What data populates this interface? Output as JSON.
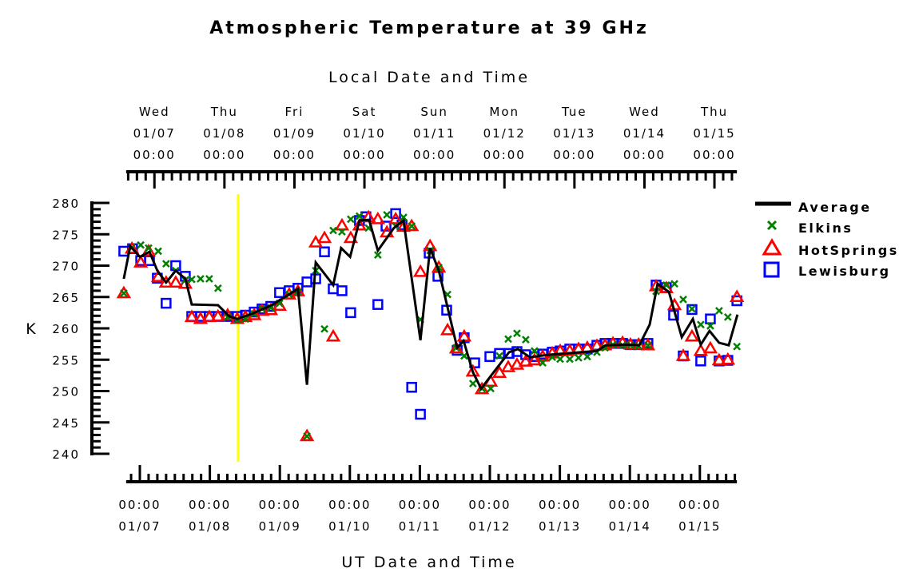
{
  "chart_data": {
    "type": "scatter",
    "title": "Atmospheric Temperature at 39 GHz",
    "top_axis_title": "Local Date and Time",
    "xlabel": "UT Date and Time",
    "ylabel": "K",
    "x_units": "hours since 01/07 00:00 UT",
    "xlim": [
      -4.7,
      204.7
    ],
    "ylim": [
      240,
      280
    ],
    "yticks": [
      280,
      275,
      270,
      265,
      260,
      255,
      250,
      245,
      240
    ],
    "local_offset_hours": -5,
    "top_ticks": [
      {
        "day": "Wed",
        "date": "01/07",
        "time": "00:00"
      },
      {
        "day": "Thu",
        "date": "01/08",
        "time": "00:00"
      },
      {
        "day": "Fri",
        "date": "01/09",
        "time": "00:00"
      },
      {
        "day": "Sat",
        "date": "01/10",
        "time": "00:00"
      },
      {
        "day": "Sun",
        "date": "01/11",
        "time": "00:00"
      },
      {
        "day": "Mon",
        "date": "01/12",
        "time": "00:00"
      },
      {
        "day": "Tue",
        "date": "01/13",
        "time": "00:00"
      },
      {
        "day": "Wed",
        "date": "01/14",
        "time": "00:00"
      },
      {
        "day": "Thu",
        "date": "01/15",
        "time": "00:00"
      }
    ],
    "bottom_ticks": [
      {
        "time": "00:00",
        "date": "01/07"
      },
      {
        "time": "00:00",
        "date": "01/08"
      },
      {
        "time": "00:00",
        "date": "01/09"
      },
      {
        "time": "00:00",
        "date": "01/10"
      },
      {
        "time": "00:00",
        "date": "01/11"
      },
      {
        "time": "00:00",
        "date": "01/12"
      },
      {
        "time": "00:00",
        "date": "01/13"
      },
      {
        "time": "00:00",
        "date": "01/14"
      },
      {
        "time": "00:00",
        "date": "01/15"
      }
    ],
    "marker_line_hours": 33.7,
    "legend_position": "right",
    "colors": {
      "average": "#000000",
      "elkins": "#008000",
      "hotsprings": "#ff0000",
      "lewisburg": "#0000ff",
      "marker": "#ffff00"
    },
    "average": {
      "name": "Average",
      "points": [
        [
          -5.5,
          267.9
        ],
        [
          -3.3,
          273.1
        ],
        [
          0,
          271.4
        ],
        [
          3.3,
          272.2
        ],
        [
          6.0,
          269.2
        ],
        [
          9.0,
          267.3
        ],
        [
          12.3,
          269.2
        ],
        [
          15.6,
          267.9
        ],
        [
          17.8,
          263.8
        ],
        [
          26.8,
          263.7
        ],
        [
          30.7,
          261.9
        ],
        [
          33.4,
          261.5
        ],
        [
          38.9,
          262.4
        ],
        [
          45.2,
          263.7
        ],
        [
          54.2,
          266.3
        ],
        [
          57.3,
          251.0
        ],
        [
          60.3,
          270.5
        ],
        [
          66.3,
          266.9
        ],
        [
          69.0,
          272.8
        ],
        [
          72.1,
          271.4
        ],
        [
          75.3,
          277.2
        ],
        [
          78.6,
          277.3
        ],
        [
          81.6,
          272.4
        ],
        [
          87.1,
          276.0
        ],
        [
          90.4,
          277.2
        ],
        [
          96.2,
          258.1
        ],
        [
          99.5,
          272.8
        ],
        [
          102.5,
          269.2
        ],
        [
          108.8,
          256.9
        ],
        [
          111.0,
          258.0
        ],
        [
          114.2,
          253.0
        ],
        [
          117.0,
          250.4
        ],
        [
          126.6,
          256.2
        ],
        [
          129.6,
          256.7
        ],
        [
          133.7,
          255.4
        ],
        [
          140.3,
          255.8
        ],
        [
          151.2,
          256.2
        ],
        [
          156.7,
          256.4
        ],
        [
          159.7,
          257.3
        ],
        [
          167.7,
          257.4
        ],
        [
          171.2,
          257.3
        ],
        [
          174.8,
          260.6
        ],
        [
          177.5,
          267.1
        ],
        [
          181.4,
          265.8
        ],
        [
          185.8,
          258.6
        ],
        [
          189.6,
          261.5
        ],
        [
          192.3,
          257.4
        ],
        [
          195.3,
          259.6
        ],
        [
          198.6,
          257.7
        ],
        [
          201.9,
          257.3
        ],
        [
          204.9,
          262.2
        ]
      ]
    },
    "station_hours": [
      -5.5,
      -2.7,
      0.3,
      3.0,
      6.3,
      9.0,
      12.3,
      15.6,
      17.8,
      20.8,
      23.8,
      26.8,
      30.1,
      33.4,
      36.2,
      39.2,
      41.9,
      44.9,
      47.9,
      51.2,
      54.2,
      57.3,
      60.3,
      63.3,
      66.3,
      69.3,
      72.3,
      75.3,
      78.4,
      81.6,
      84.7,
      87.7,
      90.4,
      93.2,
      96.2,
      99.5,
      102.5,
      105.5,
      108.5,
      111.2,
      114.2,
      117.3,
      120.3,
      123.3,
      126.3,
      129.3,
      132.3,
      135.3,
      138.1,
      141.4,
      144.1,
      147.4,
      150.4,
      153.4,
      156.7,
      159.5,
      162.2,
      165.5,
      168.2,
      171.0,
      174.2,
      177.0,
      180.5,
      183.3,
      186.3,
      189.3,
      192.3,
      195.6,
      198.6,
      201.6,
      204.7
    ],
    "elkins": {
      "name": "Elkins",
      "values": [
        265.6,
        272.9,
        273.3,
        272.8,
        272.3,
        270.3,
        269.2,
        267.7,
        267.8,
        267.9,
        267.9,
        266.4,
        261.8,
        261.3,
        261.5,
        262.3,
        263.1,
        263.3,
        264.0,
        265.4,
        265.8,
        242.8,
        269.2,
        259.9,
        275.6,
        275.4,
        277.4,
        277.9,
        276.0,
        271.7,
        278.1,
        276.3,
        277.7,
        276.3,
        261.4,
        272.4,
        269.7,
        265.4,
        256.9,
        255.6,
        251.2,
        250.4,
        250.4,
        255.6,
        258.3,
        259.2,
        258.2,
        256.4,
        254.5,
        255.4,
        255.1,
        255.1,
        255.3,
        255.5,
        256.2,
        256.9,
        257.4,
        257.3,
        257.3,
        257.2,
        257.3,
        265.9,
        266.9,
        267.1,
        264.6,
        263.1,
        260.6,
        260.4,
        262.8,
        261.8,
        257.1
      ]
    },
    "hotsprings": {
      "name": "HotSprings",
      "values": [
        265.6,
        272.7,
        270.5,
        272.3,
        268.2,
        267.3,
        267.3,
        267.1,
        261.8,
        261.5,
        261.8,
        261.9,
        262.1,
        261.5,
        261.8,
        262.1,
        262.8,
        262.9,
        263.6,
        265.4,
        265.9,
        242.8,
        273.7,
        274.4,
        258.7,
        276.4,
        274.4,
        276.4,
        277.7,
        277.4,
        275.3,
        277.4,
        276.2,
        276.3,
        269.0,
        273.1,
        269.7,
        259.7,
        256.8,
        258.7,
        253.1,
        250.3,
        251.5,
        252.9,
        253.8,
        254.2,
        254.7,
        254.9,
        255.5,
        256.0,
        256.4,
        256.4,
        256.7,
        256.9,
        257.2,
        257.3,
        257.6,
        257.7,
        257.4,
        257.4,
        257.3,
        266.7,
        266.4,
        263.7,
        255.6,
        258.7,
        256.4,
        256.8,
        254.9,
        255.0,
        265.0
      ]
    },
    "lewisburg": {
      "name": "Lewisburg",
      "points": [
        [
          -5.5,
          272.3
        ],
        [
          -2.5,
          272.7
        ],
        [
          0.3,
          270.8
        ],
        [
          3.3,
          270.8
        ],
        [
          6.0,
          268.0
        ],
        [
          9.0,
          264.0
        ],
        [
          12.3,
          270.0
        ],
        [
          15.6,
          268.3
        ],
        [
          17.8,
          261.9
        ],
        [
          20.8,
          261.9
        ],
        [
          23.8,
          261.9
        ],
        [
          26.8,
          261.9
        ],
        [
          30.1,
          261.9
        ],
        [
          33.4,
          261.9
        ],
        [
          36.2,
          262.1
        ],
        [
          39.2,
          262.6
        ],
        [
          41.9,
          263.1
        ],
        [
          44.9,
          263.5
        ],
        [
          47.9,
          265.7
        ],
        [
          51.2,
          266.0
        ],
        [
          54.2,
          266.4
        ],
        [
          57.3,
          267.4
        ],
        [
          60.3,
          267.9
        ],
        [
          63.3,
          272.2
        ],
        [
          66.3,
          266.3
        ],
        [
          69.3,
          266.0
        ],
        [
          72.3,
          262.5
        ],
        [
          75.3,
          277.2
        ],
        [
          77.5,
          277.8
        ],
        [
          81.6,
          263.8
        ],
        [
          84.4,
          276.3
        ],
        [
          87.7,
          278.3
        ],
        [
          89.9,
          276.5
        ],
        [
          93.2,
          250.6
        ],
        [
          96.2,
          246.3
        ],
        [
          99.2,
          272.0
        ],
        [
          102.2,
          268.3
        ],
        [
          105.2,
          262.9
        ],
        [
          108.8,
          256.5
        ],
        [
          111.2,
          258.5
        ],
        [
          114.8,
          254.5
        ],
        [
          120.0,
          255.5
        ],
        [
          123.3,
          256.0
        ],
        [
          126.6,
          256.0
        ],
        [
          129.3,
          256.3
        ],
        [
          132.3,
          255.8
        ],
        [
          135.3,
          255.5
        ],
        [
          138.1,
          255.9
        ],
        [
          141.4,
          256.2
        ],
        [
          144.1,
          256.4
        ],
        [
          147.4,
          256.7
        ],
        [
          150.4,
          256.7
        ],
        [
          153.4,
          256.7
        ],
        [
          156.7,
          257.3
        ],
        [
          159.5,
          257.6
        ],
        [
          162.2,
          257.6
        ],
        [
          165.5,
          257.6
        ],
        [
          168.2,
          257.4
        ],
        [
          171.0,
          257.4
        ],
        [
          174.2,
          257.6
        ],
        [
          177.0,
          266.9
        ],
        [
          180.5,
          266.5
        ],
        [
          183.0,
          262.1
        ],
        [
          186.3,
          255.6
        ],
        [
          189.3,
          263.0
        ],
        [
          192.3,
          254.8
        ],
        [
          195.6,
          261.5
        ],
        [
          198.6,
          254.8
        ],
        [
          201.6,
          254.9
        ],
        [
          204.7,
          264.4
        ]
      ]
    },
    "legend": [
      "Average",
      "Elkins",
      "HotSprings",
      "Lewisburg"
    ]
  }
}
